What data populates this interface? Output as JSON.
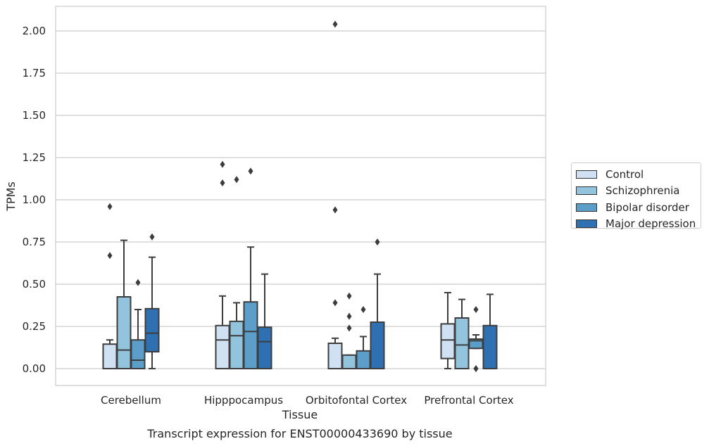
{
  "chart_data": {
    "type": "box",
    "title": "Transcript expression for ENST00000433690 by tissue",
    "xlabel": "Tissue",
    "ylabel": "TPMs",
    "ylim": [
      -0.1,
      2.15
    ],
    "yticks": [
      "0.00",
      "0.25",
      "0.50",
      "0.75",
      "1.00",
      "1.25",
      "1.50",
      "1.75",
      "2.00"
    ],
    "grid": true,
    "legend_position": "right",
    "categories": [
      "Cerebellum",
      "Hipppocampus",
      "Orbitofontal Cortex",
      "Prefrontal Cortex"
    ],
    "series": [
      {
        "name": "Control",
        "color": "#cfe1f2",
        "boxes": [
          {
            "whislo": 0.0,
            "q1": 0.0,
            "med": 0.0,
            "q3": 0.145,
            "whishi": 0.17,
            "fliers": [
              0.96,
              0.67
            ]
          },
          {
            "whislo": 0.0,
            "q1": 0.0,
            "med": 0.17,
            "q3": 0.255,
            "whishi": 0.43,
            "fliers": [
              1.21,
              1.1
            ]
          },
          {
            "whislo": 0.0,
            "q1": 0.0,
            "med": 0.0,
            "q3": 0.15,
            "whishi": 0.18,
            "fliers": [
              2.04,
              0.94,
              0.39
            ]
          },
          {
            "whislo": 0.0,
            "q1": 0.06,
            "med": 0.17,
            "q3": 0.265,
            "whishi": 0.45,
            "fliers": []
          }
        ]
      },
      {
        "name": "Schizophrenia",
        "color": "#93c4de",
        "boxes": [
          {
            "whislo": 0.0,
            "q1": 0.0,
            "med": 0.11,
            "q3": 0.425,
            "whishi": 0.76,
            "fliers": []
          },
          {
            "whislo": 0.0,
            "q1": 0.0,
            "med": 0.195,
            "q3": 0.28,
            "whishi": 0.39,
            "fliers": [
              1.12
            ]
          },
          {
            "whislo": 0.0,
            "q1": 0.0,
            "med": 0.0,
            "q3": 0.08,
            "whishi": 0.08,
            "fliers": [
              0.43,
              0.31,
              0.24
            ]
          },
          {
            "whislo": 0.0,
            "q1": 0.0,
            "med": 0.14,
            "q3": 0.3,
            "whishi": 0.41,
            "fliers": []
          }
        ]
      },
      {
        "name": "Bipolar disorder",
        "color": "#5b9ec9",
        "boxes": [
          {
            "whislo": 0.0,
            "q1": 0.0,
            "med": 0.05,
            "q3": 0.17,
            "whishi": 0.35,
            "fliers": [
              0.51
            ]
          },
          {
            "whislo": 0.0,
            "q1": 0.0,
            "med": 0.22,
            "q3": 0.395,
            "whishi": 0.72,
            "fliers": [
              1.17
            ]
          },
          {
            "whislo": 0.0,
            "q1": 0.0,
            "med": 0.0,
            "q3": 0.105,
            "whishi": 0.19,
            "fliers": [
              0.35
            ]
          },
          {
            "whislo": 0.12,
            "q1": 0.12,
            "med": 0.165,
            "q3": 0.175,
            "whishi": 0.2,
            "fliers": [
              0.35,
              0.0,
              0.0
            ]
          }
        ]
      },
      {
        "name": "Major depression",
        "color": "#2e70b1",
        "boxes": [
          {
            "whislo": 0.0,
            "q1": 0.1,
            "med": 0.21,
            "q3": 0.355,
            "whishi": 0.66,
            "fliers": [
              0.78
            ]
          },
          {
            "whislo": 0.0,
            "q1": 0.0,
            "med": 0.16,
            "q3": 0.245,
            "whishi": 0.56,
            "fliers": []
          },
          {
            "whislo": 0.0,
            "q1": 0.0,
            "med": 0.0,
            "q3": 0.275,
            "whishi": 0.56,
            "fliers": [
              0.75
            ]
          },
          {
            "whislo": 0.0,
            "q1": 0.0,
            "med": 0.0,
            "q3": 0.255,
            "whishi": 0.44,
            "fliers": []
          }
        ]
      }
    ]
  }
}
